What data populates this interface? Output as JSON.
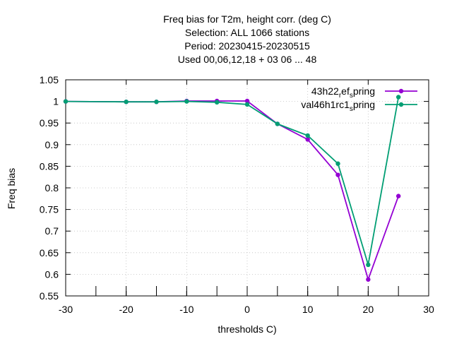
{
  "chart_data": {
    "type": "line",
    "title_lines": [
      "Freq bias  for T2m, height corr. (deg C)",
      "Selection: ALL   1066 stations",
      "Period: 20230415-20230515",
      "Used  00,06,12,18  + 03 06 ... 48"
    ],
    "xlabel": "thresholds C)",
    "ylabel": "Freq bias",
    "xlim": [
      -30,
      30
    ],
    "ylim": [
      0.55,
      1.05
    ],
    "xticks": [
      -30,
      -20,
      -10,
      0,
      10,
      20,
      30
    ],
    "xtick_labels": [
      "-30",
      "-20",
      "-10",
      "0",
      "10",
      "20",
      "30"
    ],
    "yticks": [
      0.55,
      0.6,
      0.65,
      0.7,
      0.75,
      0.8,
      0.85,
      0.9,
      0.95,
      1.0,
      1.05
    ],
    "ytick_labels": [
      "0.55",
      "0.6",
      "0.65",
      "0.7",
      "0.75",
      "0.8",
      "0.85",
      "0.9",
      "0.95",
      "1",
      "1.05"
    ],
    "grid": true,
    "legend_position": "top-right",
    "series": [
      {
        "name": "43h22_ref_spring",
        "legend_parts": [
          {
            "text": "43h22",
            "sub": false
          },
          {
            "text": "r",
            "sub": true
          },
          {
            "text": "ef",
            "sub": false
          },
          {
            "text": "s",
            "sub": true
          },
          {
            "text": "pring",
            "sub": false
          }
        ],
        "color": "#9400d3",
        "x": [
          -30,
          -20,
          -15,
          -10,
          -5,
          0,
          5,
          10,
          15,
          20,
          25
        ],
        "y": [
          1.0,
          0.999,
          0.999,
          1.001,
          1.001,
          1.001,
          0.948,
          0.912,
          0.83,
          0.588,
          0.781
        ]
      },
      {
        "name": "val46h1rc1_spring",
        "legend_parts": [
          {
            "text": "val46h1rc1",
            "sub": false
          },
          {
            "text": "s",
            "sub": true
          },
          {
            "text": "pring",
            "sub": false
          }
        ],
        "color": "#009e73",
        "x": [
          -30,
          -20,
          -15,
          -10,
          -5,
          0,
          5,
          10,
          15,
          20,
          25
        ],
        "y": [
          1.0,
          0.999,
          0.999,
          1.0,
          0.998,
          0.993,
          0.948,
          0.921,
          0.856,
          0.622,
          1.01
        ]
      }
    ],
    "excluded_tick_marks_x": [
      -25,
      -20,
      -15,
      -10,
      -5,
      0,
      5,
      10,
      15,
      20,
      25
    ]
  }
}
